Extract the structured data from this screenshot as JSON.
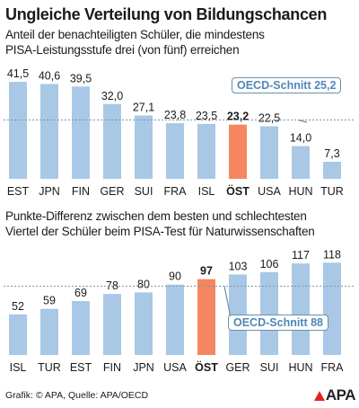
{
  "header": {
    "title": "Ungleiche Verteilung von Bildungschancen"
  },
  "colors": {
    "bar": "#a8c8e6",
    "highlight": "#f4875f",
    "average_line": "#7d95a6",
    "average_label": "#4f87b8"
  },
  "chart_data": [
    {
      "type": "bar",
      "title_lines": [
        "Anteil der benachteiligten Schüler, die mindestens",
        "PISA-Leistungsstufe drei (von fünf) erreichen"
      ],
      "categories": [
        "EST",
        "JPN",
        "FIN",
        "GER",
        "SUI",
        "FRA",
        "ISL",
        "ÖST",
        "USA",
        "HUN",
        "TUR"
      ],
      "value_labels": [
        "41,5",
        "40,6",
        "39,5",
        "32,0",
        "27,1",
        "23,8",
        "23,5",
        "23,2",
        "22,5",
        "14,0",
        "7,3"
      ],
      "values": [
        41.5,
        40.6,
        39.5,
        32.0,
        27.1,
        23.8,
        23.5,
        23.2,
        22.5,
        14.0,
        7.3
      ],
      "highlight": "ÖST",
      "average": {
        "label": "OECD-Schnitt 25,2",
        "value": 25.2
      },
      "ylim": [
        0,
        45
      ]
    },
    {
      "type": "bar",
      "title_lines": [
        "Punkte-Differenz zwischen dem besten und schlechtesten",
        "Viertel der Schüler beim PISA-Test für Naturwissenschaften"
      ],
      "categories": [
        "ISL",
        "TUR",
        "EST",
        "FIN",
        "JPN",
        "USA",
        "ÖST",
        "GER",
        "SUI",
        "HUN",
        "FRA"
      ],
      "value_labels": [
        "52",
        "59",
        "69",
        "78",
        "80",
        "90",
        "97",
        "103",
        "106",
        "117",
        "118"
      ],
      "values": [
        52,
        59,
        69,
        78,
        80,
        90,
        97,
        103,
        106,
        117,
        118
      ],
      "highlight": "ÖST",
      "average": {
        "label": "OECD-Schnitt 88",
        "value": 88
      },
      "ylim": [
        0,
        130
      ]
    }
  ],
  "footer": {
    "credit": "Grafik: © APA, Quelle: APA/OECD",
    "logo": "APA"
  }
}
